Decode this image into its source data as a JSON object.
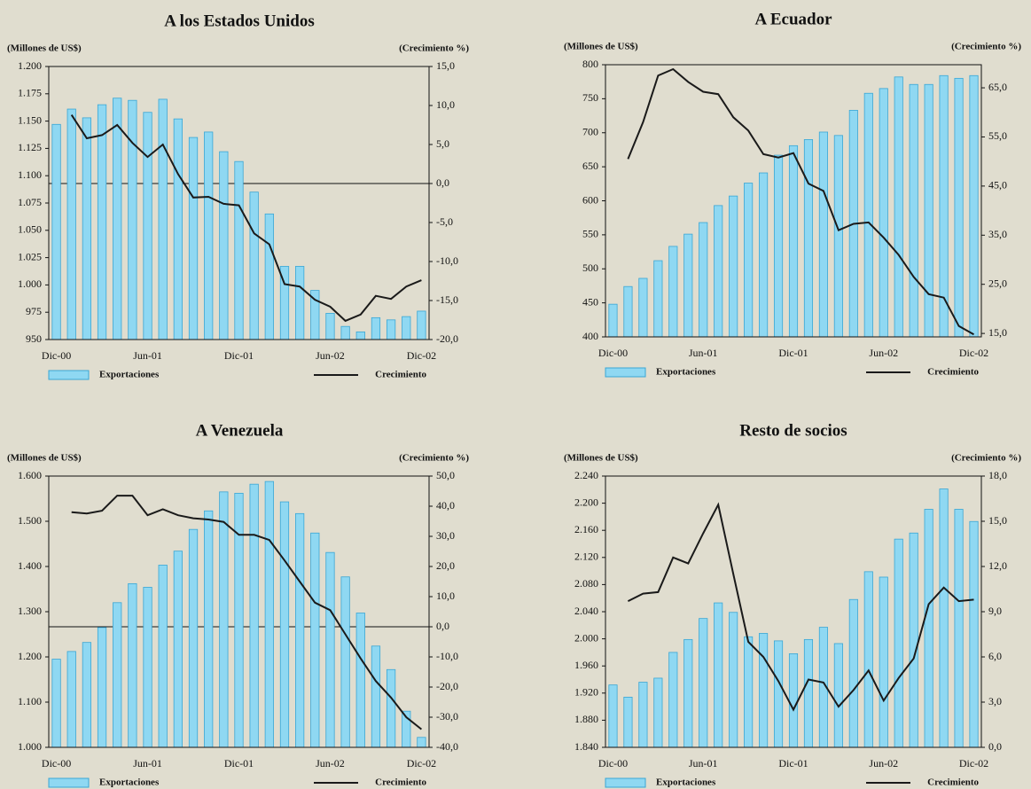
{
  "chart_data": [
    {
      "type": "bar_line",
      "title": "A los Estados Unidos",
      "y_label": "(Millones de US$)",
      "y2_label": "(Crecimiento %)",
      "categories": [
        "Dic-00",
        null,
        null,
        null,
        null,
        null,
        "Jun-01",
        null,
        null,
        null,
        null,
        null,
        "Dic-01",
        null,
        null,
        null,
        null,
        null,
        "Jun-02",
        null,
        null,
        null,
        null,
        null,
        "Dic-02"
      ],
      "series": [
        {
          "name": "Exportaciones",
          "type": "bar",
          "color": "#8fd8f2",
          "values": [
            1147,
            1161,
            1153,
            1165,
            1171,
            1169,
            1158,
            1170,
            1152,
            1135,
            1140,
            1122,
            1113,
            1085,
            1065,
            1017,
            1017,
            995,
            974,
            962,
            957,
            970,
            968,
            971,
            976
          ]
        },
        {
          "name": "Crecimiento",
          "type": "line",
          "axis": "y2",
          "color": "#1a1a1a",
          "values": [
            null,
            8.8,
            5.8,
            6.2,
            7.5,
            5.2,
            3.4,
            5.0,
            1.2,
            -1.8,
            -1.7,
            -2.6,
            -2.8,
            -6.4,
            -7.8,
            -12.9,
            -13.2,
            -14.9,
            -15.8,
            -17.6,
            -16.8,
            -14.4,
            -14.8,
            -13.2,
            -12.4
          ]
        }
      ],
      "ylim": [
        950,
        1200
      ],
      "yticks": [
        950,
        {
          "value": 975,
          "label": "975"
        },
        {
          "value": 1000,
          "label": "1.000"
        },
        {
          "value": 1025,
          "label": "1.025"
        },
        {
          "value": 1050,
          "label": "1.050"
        },
        {
          "value": 1075,
          "label": "1.075"
        },
        {
          "value": 1100,
          "label": "1.100"
        },
        {
          "value": 1125,
          "label": "1.125"
        },
        {
          "value": 1150,
          "label": "1.150"
        },
        {
          "value": 1175,
          "label": "1.175"
        },
        {
          "value": 1200,
          "label": "1.200"
        }
      ],
      "y2lim": [
        -20,
        15
      ],
      "y2ticks": [
        {
          "value": -20,
          "label": "-20,0"
        },
        {
          "value": -15,
          "label": "-15,0"
        },
        {
          "value": -10,
          "label": "-10,0"
        },
        {
          "value": -5,
          "label": "-5,0"
        },
        {
          "value": 0,
          "label": "0,0"
        },
        {
          "value": 5,
          "label": "5,0"
        },
        {
          "value": 10,
          "label": "10,0"
        },
        {
          "value": 15,
          "label": "15,0"
        }
      ]
    },
    {
      "type": "bar_line",
      "title": "A Ecuador",
      "y_label": "(Millones de US$)",
      "y2_label": "(Crecimiento %)",
      "categories": [
        "Dic-00",
        null,
        null,
        null,
        null,
        null,
        "Jun-01",
        null,
        null,
        null,
        null,
        null,
        "Dic-01",
        null,
        null,
        null,
        null,
        null,
        "Jun-02",
        null,
        null,
        null,
        null,
        null,
        "Dic-02"
      ],
      "series": [
        {
          "name": "Exportaciones",
          "type": "bar",
          "color": "#8fd8f2",
          "values": [
            448,
            474,
            486,
            512,
            533,
            551,
            568,
            593,
            607,
            626,
            641,
            667,
            681,
            690,
            701,
            696,
            733,
            758,
            765,
            782,
            771,
            771,
            784,
            780,
            784
          ]
        },
        {
          "name": "Crecimiento",
          "type": "line",
          "axis": "y2",
          "color": "#1a1a1a",
          "values": [
            null,
            50.5,
            58,
            67.5,
            68.8,
            66.2,
            64.2,
            63.7,
            59,
            56.3,
            51.5,
            50.8,
            51.7,
            45.5,
            44,
            36,
            37.3,
            37.6,
            34.5,
            31,
            26.5,
            23,
            22.3,
            16.5,
            14.8
          ]
        }
      ],
      "ylim": [
        400,
        800
      ],
      "yticks": [
        400,
        450,
        500,
        550,
        600,
        650,
        700,
        750,
        800
      ],
      "y2lim": [
        14.3,
        69.7
      ],
      "y2ticks": [
        {
          "value": 15,
          "label": "15,0"
        },
        {
          "value": 25,
          "label": "25,0"
        },
        {
          "value": 35,
          "label": "35,0"
        },
        {
          "value": 45,
          "label": "45,0"
        },
        {
          "value": 55,
          "label": "55,0"
        },
        {
          "value": 65,
          "label": "65,0"
        }
      ]
    },
    {
      "type": "bar_line",
      "title": "A  Venezuela",
      "y_label": "(Millones de US$)",
      "y2_label": "(Crecimiento %)",
      "categories": [
        "Dic-00",
        null,
        null,
        null,
        null,
        null,
        "Jun-01",
        null,
        null,
        null,
        null,
        null,
        "Dic-01",
        null,
        null,
        null,
        null,
        null,
        "Jun-02",
        null,
        null,
        null,
        null,
        null,
        "Dic-02"
      ],
      "series": [
        {
          "name": "Exportaciones",
          "type": "bar",
          "color": "#8fd8f2",
          "values": [
            1195,
            1212,
            1232,
            1265,
            1320,
            1362,
            1354,
            1403,
            1434,
            1482,
            1523,
            1565,
            1562,
            1582,
            1588,
            1543,
            1517,
            1474,
            1431,
            1377,
            1297,
            1224,
            1172,
            1080,
            1022
          ]
        },
        {
          "name": "Crecimiento",
          "type": "line",
          "axis": "y2",
          "color": "#1a1a1a",
          "values": [
            null,
            38.0,
            37.6,
            38.5,
            43.5,
            43.5,
            37.0,
            39.0,
            37.0,
            36.0,
            35.6,
            34.8,
            30.5,
            30.5,
            28.8,
            22,
            15,
            8,
            5.5,
            -2.5,
            -10.5,
            -18,
            -23.5,
            -30,
            -34
          ]
        }
      ],
      "ylim": [
        1000,
        1600
      ],
      "yticks": [
        {
          "value": 1000,
          "label": "1.000"
        },
        {
          "value": 1100,
          "label": "1.100"
        },
        {
          "value": 1200,
          "label": "1.200"
        },
        {
          "value": 1300,
          "label": "1.300"
        },
        {
          "value": 1400,
          "label": "1.400"
        },
        {
          "value": 1500,
          "label": "1.500"
        },
        {
          "value": 1600,
          "label": "1.600"
        }
      ],
      "y2lim": [
        -40,
        50
      ],
      "y2ticks": [
        {
          "value": -40,
          "label": "-40,0"
        },
        {
          "value": -30,
          "label": "-30,0"
        },
        {
          "value": -20,
          "label": "-20,0"
        },
        {
          "value": -10,
          "label": "-10,0"
        },
        {
          "value": 0,
          "label": "0,0"
        },
        {
          "value": 10,
          "label": "10,0"
        },
        {
          "value": 20,
          "label": "20,0"
        },
        {
          "value": 30,
          "label": "30,0"
        },
        {
          "value": 40,
          "label": "40,0"
        },
        {
          "value": 50,
          "label": "50,0"
        }
      ]
    },
    {
      "type": "bar_line",
      "title": "Resto de socios",
      "y_label": "(Millones de US$)",
      "y2_label": "(Crecimiento %)",
      "categories": [
        "Dic-00",
        null,
        null,
        null,
        null,
        null,
        "Jun-01",
        null,
        null,
        null,
        null,
        null,
        "Dic-01",
        null,
        null,
        null,
        null,
        null,
        "Jun-02",
        null,
        null,
        null,
        null,
        null,
        "Dic-02"
      ],
      "series": [
        {
          "name": "Exportaciones",
          "type": "bar",
          "color": "#8fd8f2",
          "values": [
            1932,
            1914,
            1936,
            1942,
            1980,
            1999,
            2030,
            2053,
            2039,
            2003,
            2008,
            1997,
            1978,
            1999,
            2017,
            1993,
            2058,
            2099,
            2091,
            2147,
            2156,
            2191,
            2221,
            2191,
            2173
          ]
        },
        {
          "name": "Crecimiento",
          "type": "line",
          "axis": "y2",
          "color": "#1a1a1a",
          "values": [
            null,
            9.7,
            10.2,
            10.3,
            12.6,
            12.2,
            14.2,
            16.1,
            11.5,
            7.0,
            6.0,
            4.4,
            2.5,
            4.5,
            4.3,
            2.7,
            3.8,
            5.1,
            3.1,
            4.6,
            5.9,
            9.5,
            10.6,
            9.7,
            9.8
          ]
        }
      ],
      "ylim": [
        1840,
        2240
      ],
      "yticks": [
        {
          "value": 1840,
          "label": "1.840"
        },
        {
          "value": 1880,
          "label": "1.880"
        },
        {
          "value": 1920,
          "label": "1.920"
        },
        {
          "value": 1960,
          "label": "1.960"
        },
        {
          "value": 2000,
          "label": "2.000"
        },
        {
          "value": 2040,
          "label": "2.040"
        },
        {
          "value": 2080,
          "label": "2.080"
        },
        {
          "value": 2120,
          "label": "2.120"
        },
        {
          "value": 2160,
          "label": "2.160"
        },
        {
          "value": 2200,
          "label": "2.200"
        },
        {
          "value": 2240,
          "label": "2.240"
        }
      ],
      "y2lim": [
        0,
        18
      ],
      "y2ticks": [
        {
          "value": 0,
          "label": "0,0"
        },
        {
          "value": 3,
          "label": "3,0"
        },
        {
          "value": 6,
          "label": "6,0"
        },
        {
          "value": 9,
          "label": "9,0"
        },
        {
          "value": 12,
          "label": "12,0"
        },
        {
          "value": 15,
          "label": "15,0"
        },
        {
          "value": 18,
          "label": "18,0"
        }
      ]
    }
  ]
}
